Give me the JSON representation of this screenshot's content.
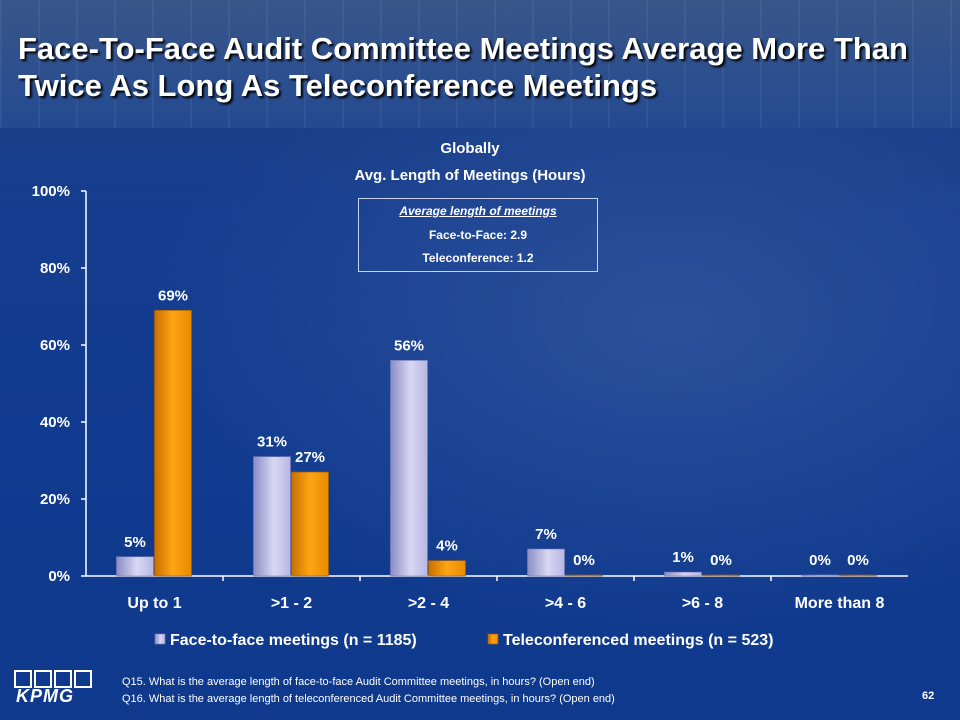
{
  "slide": {
    "title": "Face-To-Face Audit Committee Meetings Average More Than Twice As Long As Teleconference Meetings",
    "subtitle_line1": "Globally",
    "subtitle_line2": "Avg. Length of Meetings (Hours)",
    "page_number": "62",
    "logo_text": "KPMG"
  },
  "infobox": {
    "heading": "Average length of meetings",
    "line1": "Face-to-Face: 2.9",
    "line2": "Teleconference: 1.2"
  },
  "footnotes": {
    "q15": "Q15. What is the average length of face-to-face Audit Committee meetings, in hours? (Open end)",
    "q16": "Q16. What is the average length of teleconferenced Audit Committee meetings, in hours? (Open end)"
  },
  "colors": {
    "face_to_face": "#c9c8ec",
    "teleconference": "#f39a0a",
    "text": "#ffffff"
  },
  "chart_data": {
    "type": "bar",
    "title": "Avg. Length of Meetings (Hours)",
    "categories": [
      "Up to 1",
      ">1 - 2",
      ">2 - 4",
      ">4 - 6",
      ">6 - 8",
      "More than 8"
    ],
    "series": [
      {
        "name": "Face-to-face meetings (n = 1185)",
        "values": [
          5,
          31,
          56,
          7,
          1,
          0
        ],
        "labels": [
          "5%",
          "31%",
          "56%",
          "7%",
          "1%",
          "0%"
        ]
      },
      {
        "name": "Teleconferenced meetings (n = 523)",
        "values": [
          69,
          27,
          4,
          0,
          0,
          0
        ],
        "labels": [
          "69%",
          "27%",
          "4%",
          "0%",
          "0%",
          "0%"
        ]
      }
    ],
    "yticks": [
      "0%",
      "20%",
      "40%",
      "60%",
      "80%",
      "100%"
    ],
    "ylim": [
      0,
      100
    ],
    "grid": false,
    "legend": "bottom"
  }
}
